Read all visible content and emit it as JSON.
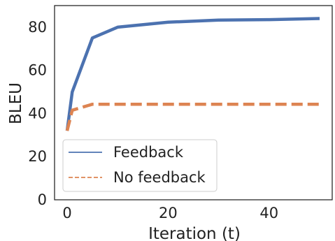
{
  "chart_data": {
    "type": "line",
    "xlabel": "Iteration (t)",
    "ylabel": "BLEU",
    "xlim": [
      -2.5,
      52.5
    ],
    "ylim": [
      0,
      90
    ],
    "xticks": [
      0,
      20,
      40
    ],
    "yticks": [
      0,
      20,
      40,
      60,
      80
    ],
    "grid": false,
    "legend": {
      "placement": "lower-left"
    },
    "series": [
      {
        "name": "Feedback",
        "color": "#4c72b0",
        "style": "solid",
        "x": [
          0,
          1,
          5,
          10,
          20,
          30,
          40,
          50
        ],
        "y": [
          32,
          50,
          75,
          80,
          82.3,
          83.3,
          83.5,
          84
        ]
      },
      {
        "name": "No feedback",
        "color": "#dd8452",
        "style": "dashed",
        "x": [
          0,
          1,
          5,
          10,
          20,
          30,
          40,
          50
        ],
        "y": [
          32,
          41.5,
          44.3,
          44.3,
          44.3,
          44.3,
          44.3,
          44.3
        ]
      }
    ]
  }
}
